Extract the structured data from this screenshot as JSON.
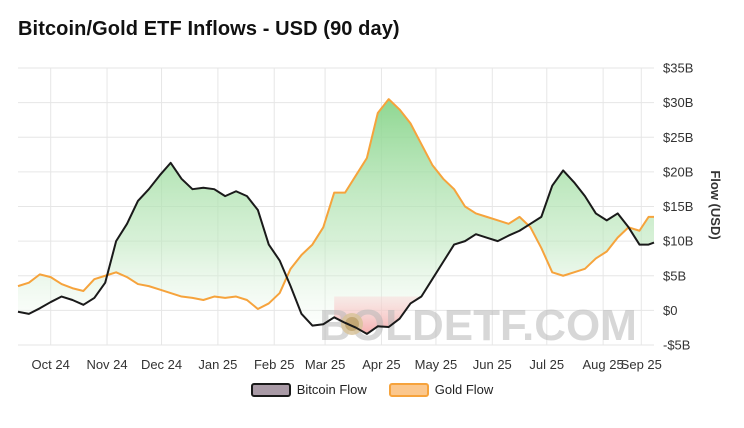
{
  "title": "Bitcoin/Gold ETF Inflows - USD (90 day)",
  "watermark": "BOLDETF.COM",
  "colors": {
    "bitcoin_line": "#1a1a1a",
    "gold_line": "#f6a33c",
    "bitcoin_swatch_fill": "#a99aa6",
    "gold_swatch_fill": "#fbc78d",
    "fill_gold_above": "#86d489",
    "fill_bitcoin_above": "#f08a8a",
    "grid": "#e6e6e6"
  },
  "chart_data": {
    "type": "line",
    "title": "Bitcoin/Gold ETF Inflows - USD (90 day)",
    "xlabel": "",
    "ylabel": "Flow (USD)",
    "ylim": [
      -5,
      35
    ],
    "yticks": [
      -5,
      0,
      5,
      10,
      15,
      20,
      25,
      30,
      35
    ],
    "ytick_labels": [
      "-$5B",
      "$0",
      "$5B",
      "$10B",
      "$15B",
      "$20B",
      "$25B",
      "$30B",
      "$35B"
    ],
    "x_start": "2024-09-27",
    "x_end": "2025-09-12",
    "xticks": [
      "2024-10-15",
      "2024-11-15",
      "2024-12-15",
      "2025-01-15",
      "2025-02-15",
      "2025-03-15",
      "2025-04-15",
      "2025-05-15",
      "2025-06-15",
      "2025-07-15",
      "2025-08-15",
      "2025-09-05"
    ],
    "xtick_labels": [
      "Oct 24",
      "Nov 24",
      "Dec 24",
      "Jan 25",
      "Feb 25",
      "Mar 25",
      "Apr 25",
      "May 25",
      "Jun 25",
      "Jul 25",
      "Aug 25",
      "Sep 25"
    ],
    "grid": true,
    "legend_position": "bottom",
    "series": [
      {
        "name": "Bitcoin Flow",
        "x": [
          "2024-09-27",
          "2024-10-03",
          "2024-10-09",
          "2024-10-15",
          "2024-10-21",
          "2024-10-27",
          "2024-11-02",
          "2024-11-08",
          "2024-11-14",
          "2024-11-20",
          "2024-11-26",
          "2024-12-02",
          "2024-12-08",
          "2024-12-14",
          "2024-12-20",
          "2024-12-26",
          "2025-01-01",
          "2025-01-07",
          "2025-01-13",
          "2025-01-19",
          "2025-01-25",
          "2025-01-31",
          "2025-02-06",
          "2025-02-12",
          "2025-02-18",
          "2025-02-24",
          "2025-03-02",
          "2025-03-08",
          "2025-03-14",
          "2025-03-20",
          "2025-03-26",
          "2025-04-01",
          "2025-04-07",
          "2025-04-13",
          "2025-04-19",
          "2025-04-25",
          "2025-05-01",
          "2025-05-07",
          "2025-05-13",
          "2025-05-19",
          "2025-05-25",
          "2025-05-31",
          "2025-06-06",
          "2025-06-12",
          "2025-06-18",
          "2025-06-24",
          "2025-06-30",
          "2025-07-06",
          "2025-07-12",
          "2025-07-18",
          "2025-07-24",
          "2025-07-30",
          "2025-08-05",
          "2025-08-11",
          "2025-08-17",
          "2025-08-23",
          "2025-08-29",
          "2025-09-04",
          "2025-09-09",
          "2025-09-12"
        ],
        "values": [
          -0.2,
          -0.5,
          0.3,
          1.2,
          2.0,
          1.5,
          0.8,
          1.8,
          4.0,
          10.0,
          12.5,
          15.8,
          17.5,
          19.5,
          21.3,
          19.0,
          17.5,
          17.7,
          17.5,
          16.5,
          17.2,
          16.5,
          14.5,
          9.5,
          7.2,
          3.5,
          -0.5,
          -2.2,
          -2.0,
          -1.0,
          -1.8,
          -2.5,
          -3.4,
          -2.3,
          -2.4,
          -1.2,
          1.0,
          2.0,
          4.5,
          7.0,
          9.5,
          10.0,
          11.0,
          10.5,
          10.0,
          10.8,
          11.5,
          12.5,
          13.5,
          18.0,
          20.2,
          18.5,
          16.5,
          14.0,
          13.0,
          14.0,
          12.0,
          9.5,
          9.5,
          9.8
        ]
      },
      {
        "name": "Gold Flow",
        "x": [
          "2024-09-27",
          "2024-10-03",
          "2024-10-09",
          "2024-10-15",
          "2024-10-21",
          "2024-10-27",
          "2024-11-02",
          "2024-11-08",
          "2024-11-14",
          "2024-11-20",
          "2024-11-26",
          "2024-12-02",
          "2024-12-08",
          "2024-12-14",
          "2024-12-20",
          "2024-12-26",
          "2025-01-01",
          "2025-01-07",
          "2025-01-13",
          "2025-01-19",
          "2025-01-25",
          "2025-01-31",
          "2025-02-06",
          "2025-02-12",
          "2025-02-18",
          "2025-02-24",
          "2025-03-02",
          "2025-03-08",
          "2025-03-14",
          "2025-03-20",
          "2025-03-26",
          "2025-04-01",
          "2025-04-07",
          "2025-04-13",
          "2025-04-19",
          "2025-04-25",
          "2025-05-01",
          "2025-05-07",
          "2025-05-13",
          "2025-05-19",
          "2025-05-25",
          "2025-05-31",
          "2025-06-06",
          "2025-06-12",
          "2025-06-18",
          "2025-06-24",
          "2025-06-30",
          "2025-07-06",
          "2025-07-12",
          "2025-07-18",
          "2025-07-24",
          "2025-07-30",
          "2025-08-05",
          "2025-08-11",
          "2025-08-17",
          "2025-08-23",
          "2025-08-29",
          "2025-09-04",
          "2025-09-09",
          "2025-09-12"
        ],
        "values": [
          3.5,
          4.0,
          5.2,
          4.8,
          3.8,
          3.2,
          2.8,
          4.5,
          5.0,
          5.5,
          4.8,
          3.8,
          3.5,
          3.0,
          2.5,
          2.0,
          1.8,
          1.5,
          2.0,
          1.8,
          2.0,
          1.5,
          0.2,
          1.0,
          2.5,
          6.0,
          8.0,
          9.5,
          12.0,
          17.0,
          17.0,
          19.5,
          22.0,
          28.5,
          30.5,
          29.0,
          27.0,
          24.0,
          21.0,
          19.0,
          17.5,
          15.0,
          14.0,
          13.5,
          13.0,
          12.5,
          13.5,
          12.0,
          9.0,
          5.5,
          5.0,
          5.5,
          6.0,
          7.5,
          8.5,
          10.5,
          12.0,
          11.5,
          13.5,
          13.5
        ]
      }
    ]
  },
  "legend": {
    "bitcoin_label": "Bitcoin Flow",
    "gold_label": "Gold Flow"
  }
}
